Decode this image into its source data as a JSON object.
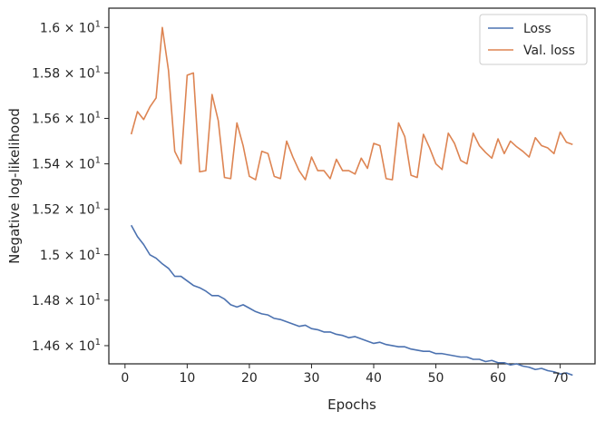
{
  "chart_data": {
    "type": "line",
    "title": "",
    "xlabel": "Epochs",
    "ylabel": "Negative log-likelihood",
    "xlim": [
      -2.6,
      75.6
    ],
    "ylim": [
      14.52,
      16.085
    ],
    "grid": false,
    "legend_position": "top-right",
    "x_ticks": [
      0,
      10,
      20,
      30,
      40,
      50,
      60,
      70
    ],
    "x_tick_labels": [
      "0",
      "10",
      "20",
      "30",
      "40",
      "50",
      "60",
      "70"
    ],
    "y_ticks": [
      14.6,
      14.8,
      15.0,
      15.2,
      15.4,
      15.6,
      15.8,
      16.0
    ],
    "y_tick_labels": [
      {
        "mantissa": "1.46",
        "base": "10",
        "exp": "1"
      },
      {
        "mantissa": "1.48",
        "base": "10",
        "exp": "1"
      },
      {
        "mantissa": "1.5",
        "base": "10",
        "exp": "1"
      },
      {
        "mantissa": "1.52",
        "base": "10",
        "exp": "1"
      },
      {
        "mantissa": "1.54",
        "base": "10",
        "exp": "1"
      },
      {
        "mantissa": "1.56",
        "base": "10",
        "exp": "1"
      },
      {
        "mantissa": "1.58",
        "base": "10",
        "exp": "1"
      },
      {
        "mantissa": "1.6",
        "base": "10",
        "exp": "1"
      }
    ],
    "x": [
      1,
      2,
      3,
      4,
      5,
      6,
      7,
      8,
      9,
      10,
      11,
      12,
      13,
      14,
      15,
      16,
      17,
      18,
      19,
      20,
      21,
      22,
      23,
      24,
      25,
      26,
      27,
      28,
      29,
      30,
      31,
      32,
      33,
      34,
      35,
      36,
      37,
      38,
      39,
      40,
      41,
      42,
      43,
      44,
      45,
      46,
      47,
      48,
      49,
      50,
      51,
      52,
      53,
      54,
      55,
      56,
      57,
      58,
      59,
      60,
      61,
      62,
      63,
      64,
      65,
      66,
      67,
      68,
      69,
      70,
      71,
      72
    ],
    "series": [
      {
        "name": "Loss",
        "color": "#4c72b0",
        "values": [
          15.13,
          15.08,
          15.045,
          15.0,
          14.985,
          14.96,
          14.94,
          14.905,
          14.905,
          14.885,
          14.865,
          14.855,
          14.84,
          14.82,
          14.82,
          14.805,
          14.78,
          14.77,
          14.78,
          14.765,
          14.75,
          14.74,
          14.735,
          14.72,
          14.715,
          14.705,
          14.695,
          14.685,
          14.69,
          14.675,
          14.67,
          14.66,
          14.66,
          14.65,
          14.645,
          14.635,
          14.64,
          14.63,
          14.62,
          14.61,
          14.615,
          14.605,
          14.6,
          14.595,
          14.595,
          14.585,
          14.58,
          14.575,
          14.575,
          14.565,
          14.565,
          14.56,
          14.555,
          14.55,
          14.55,
          14.54,
          14.54,
          14.53,
          14.535,
          14.525,
          14.525,
          14.515,
          14.52,
          14.51,
          14.505,
          14.495,
          14.5,
          14.49,
          14.485,
          14.475,
          14.48,
          14.47
        ]
      },
      {
        "name": "Val. loss",
        "color": "#dd8452",
        "values": [
          15.53,
          15.63,
          15.595,
          15.65,
          15.69,
          16.0,
          15.81,
          15.455,
          15.4,
          15.79,
          15.8,
          15.365,
          15.37,
          15.705,
          15.59,
          15.34,
          15.335,
          15.58,
          15.48,
          15.345,
          15.33,
          15.455,
          15.445,
          15.345,
          15.335,
          15.5,
          15.43,
          15.37,
          15.33,
          15.43,
          15.37,
          15.37,
          15.335,
          15.42,
          15.37,
          15.37,
          15.355,
          15.425,
          15.38,
          15.49,
          15.48,
          15.335,
          15.33,
          15.58,
          15.52,
          15.35,
          15.34,
          15.53,
          15.47,
          15.4,
          15.375,
          15.535,
          15.49,
          15.415,
          15.4,
          15.535,
          15.48,
          15.45,
          15.425,
          15.51,
          15.445,
          15.5,
          15.475,
          15.455,
          15.43,
          15.515,
          15.48,
          15.47,
          15.445,
          15.54,
          15.495,
          15.485
        ]
      }
    ]
  }
}
